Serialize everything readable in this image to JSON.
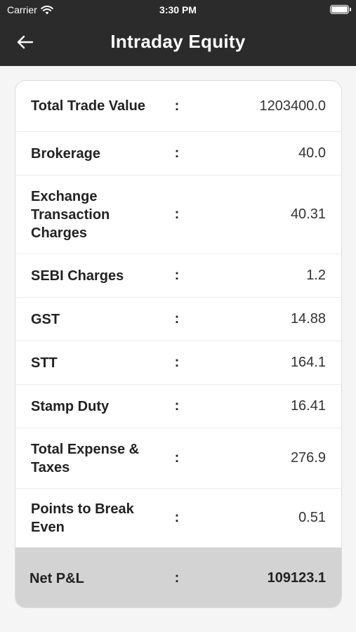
{
  "status_bar": {
    "carrier": "Carrier",
    "time": "3:30 PM"
  },
  "header": {
    "title": "Intraday Equity",
    "back_icon": "arrow-left-icon"
  },
  "colors": {
    "header_bg": "#2b2b2b",
    "net_row_bg": "#d3d3d3"
  },
  "rows": [
    {
      "label": "Total Trade Value",
      "colon": ":",
      "value": "1203400.0"
    },
    {
      "label": "Brokerage",
      "colon": ":",
      "value": "40.0"
    },
    {
      "label": "Exchange Transaction Charges",
      "colon": ":",
      "value": "40.31"
    },
    {
      "label": "SEBI Charges",
      "colon": ":",
      "value": "1.2"
    },
    {
      "label": "GST",
      "colon": ":",
      "value": "14.88"
    },
    {
      "label": "STT",
      "colon": ":",
      "value": "164.1"
    },
    {
      "label": "Stamp Duty",
      "colon": ":",
      "value": "16.41"
    },
    {
      "label": "Total Expense & Taxes",
      "colon": ":",
      "value": "276.9"
    },
    {
      "label": "Points to Break Even",
      "colon": ":",
      "value": "0.51"
    }
  ],
  "net": {
    "label": "Net P&L",
    "colon": ":",
    "value": "109123.1"
  }
}
